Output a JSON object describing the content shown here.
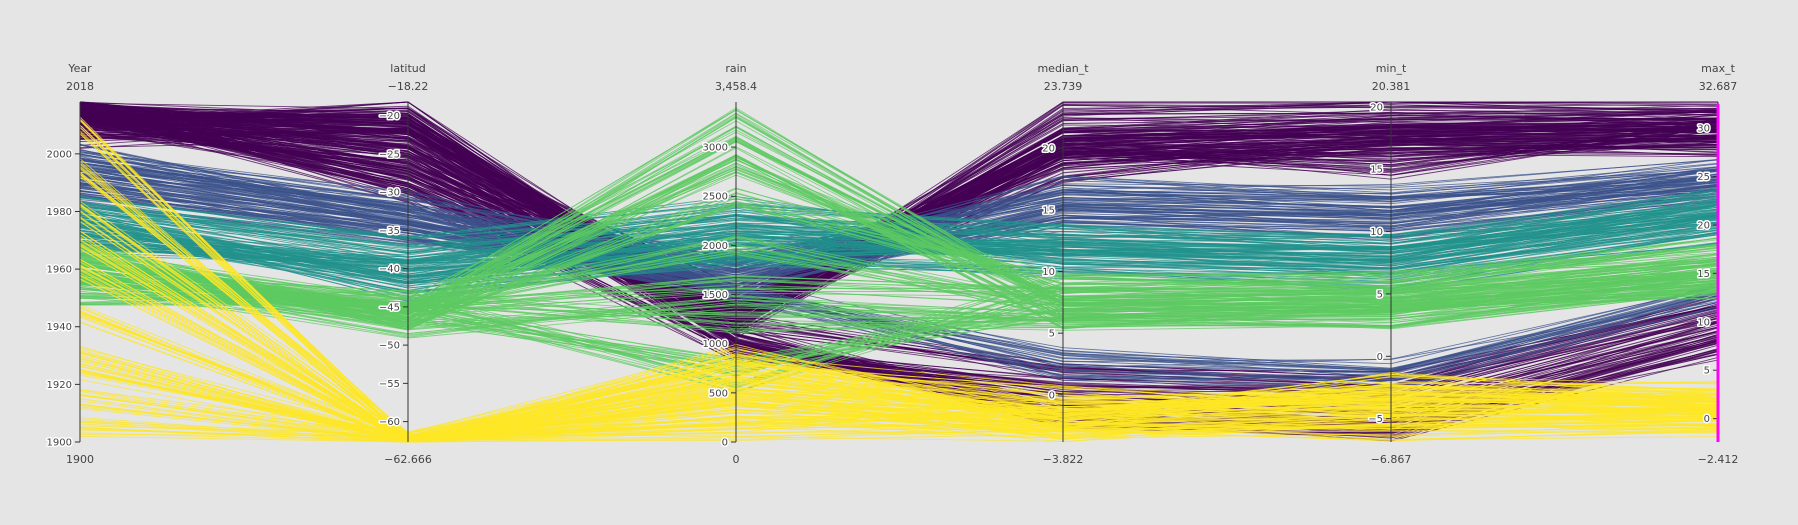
{
  "chart_data": {
    "type": "parallel-coordinates",
    "color_scale": "viridis",
    "color_scale_colors": [
      "#440154",
      "#3b528b",
      "#21918c",
      "#5ec962",
      "#fde725"
    ],
    "highlight_color": "#ff00ff",
    "dimensions": [
      {
        "name": "Year",
        "range": [
          1900,
          2018
        ],
        "range_labels": [
          "1900",
          "2018"
        ],
        "ticks": [
          1900,
          1920,
          1940,
          1960,
          1980,
          2000
        ],
        "tick_labels": [
          "1900",
          "1920",
          "1940",
          "1960",
          "1980",
          "2000"
        ]
      },
      {
        "name": "latitud",
        "range": [
          -62.666,
          -18.22
        ],
        "range_labels": [
          "−62.666",
          "−18.22"
        ],
        "ticks": [
          -60,
          -55,
          -50,
          -45,
          -40,
          -35,
          -30,
          -25,
          -20
        ],
        "tick_labels": [
          "−60",
          "−55",
          "−50",
          "−45",
          "−40",
          "−35",
          "−30",
          "−25",
          "−20"
        ]
      },
      {
        "name": "rain",
        "range": [
          0,
          3458.4
        ],
        "range_labels": [
          "0",
          "3,458.4"
        ],
        "ticks": [
          0,
          500,
          1000,
          1500,
          2000,
          2500,
          3000
        ],
        "tick_labels": [
          "0",
          "500",
          "1000",
          "1500",
          "2000",
          "2500",
          "3000"
        ]
      },
      {
        "name": "median_t",
        "range": [
          -3.822,
          23.739
        ],
        "range_labels": [
          "−3.822",
          "23.739"
        ],
        "ticks": [
          0,
          5,
          10,
          15,
          20
        ],
        "tick_labels": [
          "0",
          "5",
          "10",
          "15",
          "20"
        ]
      },
      {
        "name": "min_t",
        "range": [
          -6.867,
          20.381
        ],
        "range_labels": [
          "−6.867",
          "20.381"
        ],
        "ticks": [
          -5,
          0,
          5,
          10,
          15,
          20
        ],
        "tick_labels": [
          "−5",
          "0",
          "5",
          "10",
          "15",
          "20"
        ]
      },
      {
        "name": "max_t",
        "range": [
          -2.412,
          32.687
        ],
        "range_labels": [
          "−2.412",
          "32.687"
        ],
        "ticks": [
          0,
          5,
          10,
          15,
          20,
          25,
          30
        ],
        "tick_labels": [
          "0",
          "5",
          "10",
          "15",
          "20",
          "25",
          "30"
        ]
      }
    ],
    "clusters": [
      {
        "color_index": 0,
        "records": [
          [
            2015,
            -20,
            1300,
            20,
            18,
            30
          ],
          [
            2015,
            -22,
            1250,
            21,
            19,
            31
          ],
          [
            2012,
            -25,
            1400,
            19,
            17,
            29
          ],
          [
            2010,
            -28,
            1150,
            20,
            18,
            30
          ],
          [
            2014,
            -21,
            1350,
            22,
            19,
            31
          ],
          [
            2016,
            -24,
            1300,
            21,
            18,
            30
          ],
          [
            2011,
            -19,
            1200,
            23,
            20,
            32
          ],
          [
            2013,
            -27,
            1450,
            19,
            17,
            28
          ],
          [
            2017,
            -23,
            1500,
            20,
            16,
            29
          ],
          [
            2009,
            -26,
            1350,
            21,
            18,
            31
          ],
          [
            2016,
            -30,
            1300,
            18,
            17,
            28
          ],
          [
            2005,
            -22,
            1200,
            20,
            15,
            30
          ],
          [
            2012,
            -20,
            1100,
            -2,
            -6,
            8
          ],
          [
            2015,
            -25,
            1000,
            -1,
            -5,
            9
          ],
          [
            2010,
            -23,
            950,
            0,
            -4,
            10
          ],
          [
            2014,
            -21,
            1050,
            -2,
            -6,
            7
          ],
          [
            2013,
            -30,
            900,
            1,
            -3,
            11
          ],
          [
            2016,
            -28,
            1200,
            2,
            -2,
            12
          ]
        ]
      },
      {
        "color_index": 1,
        "records": [
          [
            1995,
            -32,
            1750,
            16,
            12,
            25
          ],
          [
            1990,
            -35,
            1700,
            15,
            11,
            24
          ],
          [
            2000,
            -33,
            1800,
            17,
            13,
            26
          ],
          [
            1985,
            -36,
            1650,
            14,
            10,
            23
          ],
          [
            1998,
            -31,
            1900,
            16,
            12,
            24
          ],
          [
            1992,
            -34,
            1600,
            15,
            11,
            25
          ],
          [
            1988,
            -35,
            1550,
            3,
            -1,
            13
          ],
          [
            1996,
            -33,
            1500,
            2,
            -2,
            12
          ]
        ]
      },
      {
        "color_index": 2,
        "records": [
          [
            1980,
            -38,
            2200,
            13,
            9,
            22
          ],
          [
            1975,
            -40,
            2100,
            12,
            8,
            21
          ],
          [
            1970,
            -39,
            2300,
            11,
            7,
            20
          ],
          [
            1978,
            -41,
            2000,
            12,
            8,
            21
          ],
          [
            1972,
            -42,
            2150,
            11,
            7,
            20
          ],
          [
            1968,
            -40,
            1900,
            12,
            8,
            22
          ],
          [
            1982,
            -37,
            2400,
            13,
            9,
            23
          ],
          [
            1976,
            -43,
            1850,
            10,
            6,
            19
          ]
        ]
      },
      {
        "color_index": 3,
        "records": [
          [
            1960,
            -46,
            2800,
            8,
            5,
            16
          ],
          [
            1955,
            -45,
            3100,
            7,
            4,
            15
          ],
          [
            1965,
            -47,
            2500,
            9,
            6,
            17
          ],
          [
            1950,
            -44,
            1200,
            6,
            3,
            14
          ],
          [
            1962,
            -46,
            800,
            7,
            4,
            13
          ],
          [
            1958,
            -45,
            1600,
            8,
            5,
            15
          ],
          [
            1966,
            -47,
            2900,
            6,
            4,
            14
          ],
          [
            1953,
            -46,
            3300,
            7,
            5,
            16
          ],
          [
            1961,
            -44,
            600,
            9,
            6,
            18
          ],
          [
            1957,
            -48,
            1400,
            6,
            3,
            13
          ],
          [
            1964,
            -45,
            2000,
            7,
            4,
            15
          ]
        ]
      },
      {
        "color_index": 4,
        "records": [
          [
            2010,
            -62.666,
            500,
            -3,
            -5,
            0
          ],
          [
            1960,
            -62.666,
            400,
            -2,
            -4,
            1
          ],
          [
            1930,
            -62.666,
            600,
            -1,
            -3,
            2
          ],
          [
            1905,
            -62.666,
            300,
            -3,
            -5,
            0
          ],
          [
            1980,
            -62.666,
            700,
            -2,
            -4,
            1
          ],
          [
            1915,
            -62.666,
            200,
            -1,
            -3,
            2
          ],
          [
            1945,
            -62.666,
            900,
            -2,
            -2,
            3
          ],
          [
            1995,
            -62.666,
            800,
            0,
            -4,
            1
          ],
          [
            1925,
            -62.666,
            100,
            -3,
            -6,
            -1
          ],
          [
            1970,
            -62.666,
            550,
            -2,
            -3,
            2
          ]
        ]
      }
    ]
  }
}
